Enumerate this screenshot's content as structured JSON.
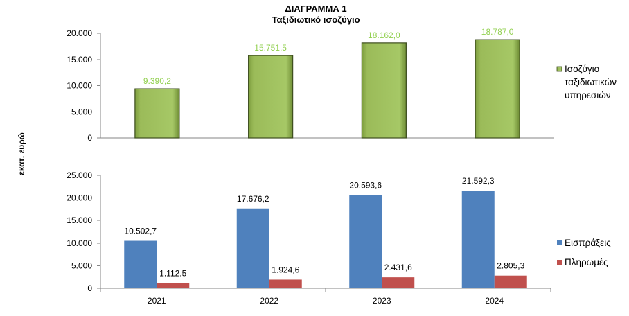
{
  "title": "ΔΙΑΓΡΑΜΜΑ 1",
  "subtitle": "Ταξιδιωτικό ισοζύγιο",
  "ylabel": "εκατ. ευρώ",
  "colors": {
    "balance": "#9BBB59",
    "balance_label": "#92D050",
    "receipts": "#4F81BD",
    "payments": "#C0504D"
  },
  "chart_data": [
    {
      "type": "bar",
      "categories": [
        "2021",
        "2022",
        "2023",
        "2024"
      ],
      "series": [
        {
          "name": "Ισοζύγιο ταξιδιωτικών υπηρεσιών",
          "values": [
            9390.2,
            15751.5,
            18162.0,
            18787.0
          ]
        }
      ],
      "value_labels": [
        "9.390,2",
        "15.751,5",
        "18.162,0",
        "18.787,0"
      ],
      "legend_lines": [
        "Ισοζύγιο",
        "ταξιδιωτικών",
        "υπηρεσιών"
      ],
      "ylim": [
        0,
        20000
      ],
      "yticks": [
        "0",
        "5.000",
        "10.000",
        "15.000",
        "20.000"
      ],
      "legend_position": "right",
      "grid": false
    },
    {
      "type": "bar",
      "categories": [
        "2021",
        "2022",
        "2023",
        "2024"
      ],
      "series": [
        {
          "name": "Εισπράξεις",
          "values": [
            10502.7,
            17676.2,
            20593.6,
            21592.3
          ]
        },
        {
          "name": "Πληρωμές",
          "values": [
            1112.5,
            1924.6,
            2431.6,
            2805.3
          ]
        }
      ],
      "value_labels": [
        [
          "10.502,7",
          "17.676,2",
          "20.593,6",
          "21.592,3"
        ],
        [
          "1.112,5",
          "1.924,6",
          "2.431,6",
          "2.805,3"
        ]
      ],
      "ylim": [
        0,
        25000
      ],
      "yticks": [
        "0",
        "5.000",
        "10.000",
        "15.000",
        "20.000",
        "25.000"
      ],
      "legend_position": "right",
      "grid": false
    }
  ]
}
